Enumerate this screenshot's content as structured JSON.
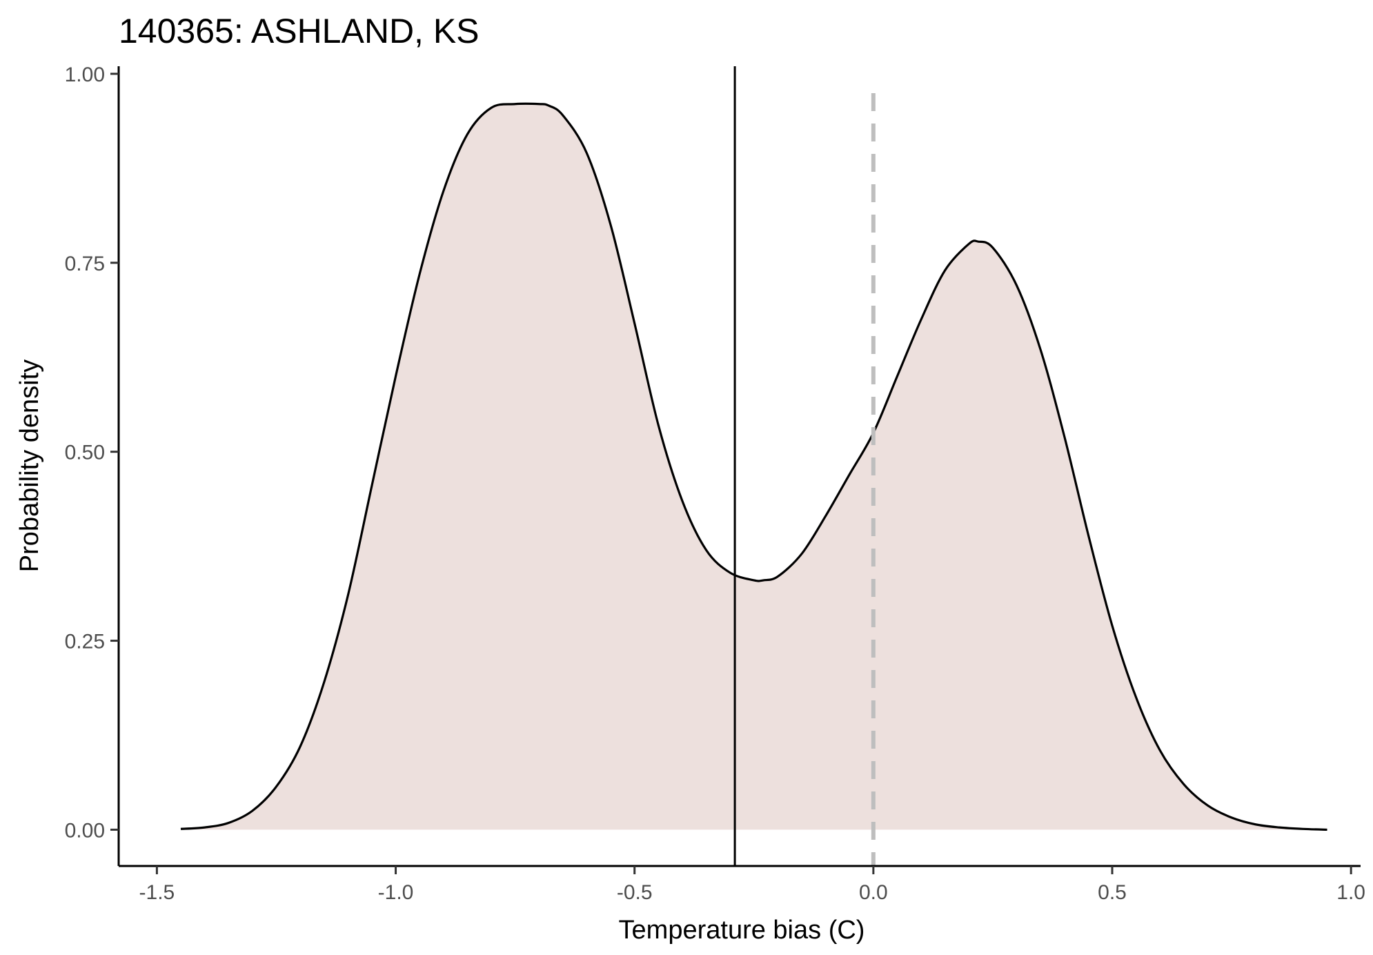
{
  "chart_data": {
    "type": "area",
    "title": "140365: ASHLAND, KS",
    "xlabel": "Temperature bias (C)",
    "ylabel": "Probability density",
    "xlim": [
      -1.58,
      1.02
    ],
    "ylim": [
      -0.048,
      1.01
    ],
    "x_ticks": [
      -1.5,
      -1.0,
      -0.5,
      0.0,
      0.5,
      1.0
    ],
    "x_tick_labels": [
      "-1.5",
      "-1.0",
      "-0.5",
      "0.0",
      "0.5",
      "1.0"
    ],
    "y_ticks": [
      0.0,
      0.25,
      0.5,
      0.75,
      1.0
    ],
    "y_tick_labels": [
      "0.00",
      "0.25",
      "0.50",
      "0.75",
      "1.00"
    ],
    "grid": false,
    "legend": "none",
    "series": [
      {
        "x": [
          -1.45,
          -1.4,
          -1.35,
          -1.3,
          -1.25,
          -1.2,
          -1.15,
          -1.1,
          -1.05,
          -1.0,
          -0.95,
          -0.9,
          -0.85,
          -0.8,
          -0.75,
          -0.7,
          -0.68,
          -0.65,
          -0.6,
          -0.55,
          -0.5,
          -0.45,
          -0.4,
          -0.35,
          -0.3,
          -0.25,
          -0.23,
          -0.2,
          -0.15,
          -0.1,
          -0.05,
          0.0,
          0.05,
          0.1,
          0.15,
          0.2,
          0.22,
          0.25,
          0.3,
          0.35,
          0.4,
          0.45,
          0.5,
          0.55,
          0.6,
          0.65,
          0.7,
          0.75,
          0.8,
          0.85,
          0.9,
          0.95
        ],
        "y": [
          0.001,
          0.003,
          0.009,
          0.025,
          0.057,
          0.11,
          0.195,
          0.31,
          0.455,
          0.6,
          0.735,
          0.845,
          0.92,
          0.955,
          0.96,
          0.96,
          0.958,
          0.945,
          0.895,
          0.8,
          0.67,
          0.535,
          0.435,
          0.37,
          0.34,
          0.33,
          0.33,
          0.335,
          0.365,
          0.415,
          0.47,
          0.525,
          0.6,
          0.675,
          0.74,
          0.775,
          0.778,
          0.77,
          0.72,
          0.635,
          0.52,
          0.39,
          0.27,
          0.175,
          0.105,
          0.06,
          0.032,
          0.016,
          0.007,
          0.003,
          0.001,
          0.0
        ],
        "fill_color": "#ede0dd",
        "line_color": "#000000"
      }
    ],
    "reference_lines": [
      {
        "x": -0.29,
        "style": "solid",
        "color": "#000000"
      },
      {
        "x": 0.0,
        "style": "dashed",
        "color": "#bebebe"
      }
    ]
  }
}
